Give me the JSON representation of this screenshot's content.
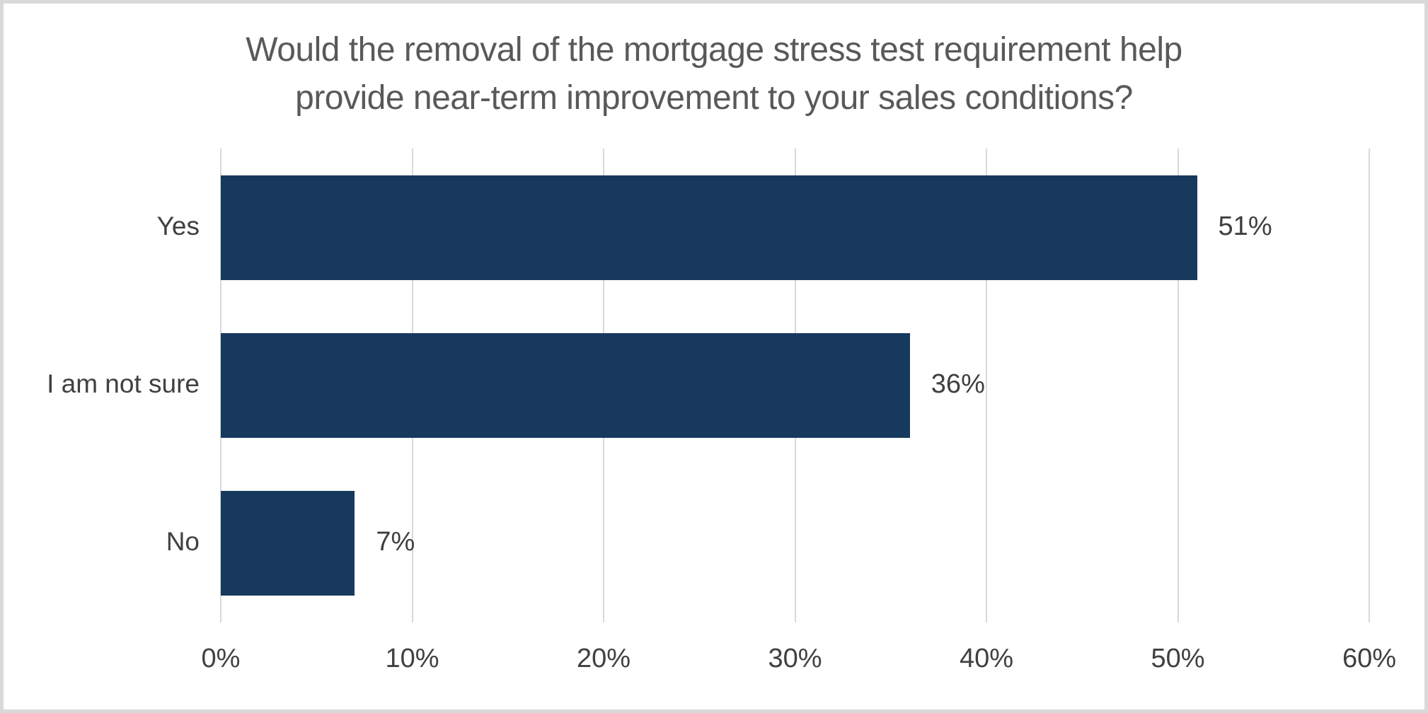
{
  "title": {
    "line1": "Would the removal of the mortgage stress test requirement help",
    "line2": "provide near-term improvement to your sales conditions?",
    "color": "#595959"
  },
  "chart_data": {
    "type": "bar",
    "orientation": "horizontal",
    "title": "Would the removal of the mortgage stress test requirement help provide near-term improvement to your sales conditions?",
    "categories": [
      "Yes",
      "I am not sure",
      "No"
    ],
    "values": [
      51,
      36,
      7
    ],
    "value_labels": [
      "51%",
      "36%",
      "7%"
    ],
    "xlabel": "",
    "ylabel": "",
    "x_ticks": [
      "0%",
      "10%",
      "20%",
      "30%",
      "40%",
      "50%",
      "60%"
    ],
    "x_tick_values": [
      0,
      10,
      20,
      30,
      40,
      50,
      60
    ],
    "xlim": [
      0,
      60
    ],
    "grid": "vertical-only",
    "legend": "none",
    "colors": {
      "bar": "#17395e",
      "gridline": "#d9d9d9",
      "labels": "#404040",
      "title": "#595959",
      "frame_border": "#d9d9d9",
      "background": "#ffffff"
    }
  }
}
